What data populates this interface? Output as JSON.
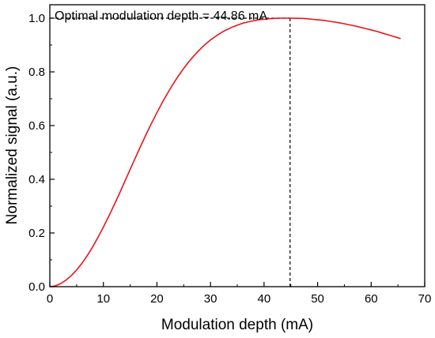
{
  "chart_data": {
    "type": "line",
    "title": "",
    "xlabel": "Modulation depth (mA)",
    "ylabel": "Normalized signal (a.u.)",
    "xlim": [
      0,
      70
    ],
    "ylim": [
      0,
      1.05
    ],
    "x_ticks": [
      0,
      10,
      20,
      30,
      40,
      50,
      60,
      70
    ],
    "x_tick_labels": [
      "0",
      "10",
      "20",
      "30",
      "40",
      "50",
      "60",
      "70"
    ],
    "y_ticks": [
      0,
      0.2,
      0.4,
      0.6,
      0.8,
      1.0
    ],
    "y_tick_labels": [
      "0.0",
      "0.2",
      "0.4",
      "0.6",
      "0.8",
      "1.0"
    ],
    "grid": false,
    "series": [
      {
        "color": "#e8141a",
        "x": [
          0,
          1,
          2,
          3,
          4,
          5,
          6,
          7,
          8,
          9,
          10,
          11,
          12,
          13,
          14,
          15,
          16,
          17,
          18,
          19,
          20,
          21,
          22,
          23,
          24,
          25,
          26,
          27,
          28,
          29,
          30,
          31,
          32,
          33,
          34,
          35,
          36,
          37,
          38,
          39,
          40,
          41,
          42,
          43,
          44,
          45,
          46,
          47,
          48,
          49,
          50,
          51,
          52,
          53,
          54,
          55,
          56,
          57,
          58,
          59,
          60,
          61,
          62,
          63,
          64,
          65,
          65.5
        ],
        "y": [
          0.0,
          0.003,
          0.011,
          0.024,
          0.041,
          0.062,
          0.087,
          0.116,
          0.148,
          0.184,
          0.222,
          0.262,
          0.304,
          0.347,
          0.392,
          0.437,
          0.481,
          0.525,
          0.568,
          0.609,
          0.648,
          0.686,
          0.721,
          0.754,
          0.785,
          0.813,
          0.839,
          0.862,
          0.883,
          0.902,
          0.919,
          0.933,
          0.946,
          0.957,
          0.966,
          0.974,
          0.981,
          0.986,
          0.99,
          0.994,
          0.996,
          0.998,
          0.999,
          1.0,
          1.0,
          1.0,
          0.9995,
          0.999,
          0.998,
          0.996,
          0.994,
          0.992,
          0.989,
          0.986,
          0.983,
          0.979,
          0.975,
          0.971,
          0.966,
          0.961,
          0.956,
          0.951,
          0.945,
          0.939,
          0.933,
          0.927,
          0.924
        ]
      }
    ],
    "annotations": [
      {
        "text": "Optimal modulation depth = 44.86 mA",
        "x": 44.86,
        "y": 1.0
      }
    ],
    "reference_lines": [
      {
        "orientation": "vertical",
        "value": 44.86,
        "style": "dashed"
      },
      {
        "orientation": "horizontal",
        "value": 1.0,
        "style": "dashed"
      }
    ]
  }
}
